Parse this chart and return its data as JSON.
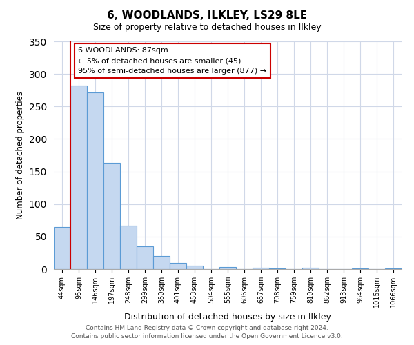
{
  "title": "6, WOODLANDS, ILKLEY, LS29 8LE",
  "subtitle": "Size of property relative to detached houses in Ilkley",
  "xlabel": "Distribution of detached houses by size in Ilkley",
  "ylabel": "Number of detached properties",
  "bar_color": "#c5d8f0",
  "bar_edge_color": "#5b9bd5",
  "categories": [
    "44sqm",
    "95sqm",
    "146sqm",
    "197sqm",
    "248sqm",
    "299sqm",
    "350sqm",
    "401sqm",
    "453sqm",
    "504sqm",
    "555sqm",
    "606sqm",
    "657sqm",
    "708sqm",
    "759sqm",
    "810sqm",
    "862sqm",
    "913sqm",
    "964sqm",
    "1015sqm",
    "1066sqm"
  ],
  "values": [
    65,
    282,
    272,
    163,
    67,
    35,
    20,
    10,
    5,
    0,
    3,
    0,
    2,
    1,
    0,
    2,
    0,
    0,
    1,
    0,
    1
  ],
  "ylim": [
    0,
    350
  ],
  "yticks": [
    0,
    50,
    100,
    150,
    200,
    250,
    300,
    350
  ],
  "marker_color": "#cc0000",
  "annotation_title": "6 WOODLANDS: 87sqm",
  "annotation_line1": "← 5% of detached houses are smaller (45)",
  "annotation_line2": "95% of semi-detached houses are larger (877) →",
  "annotation_box_color": "#ffffff",
  "annotation_border_color": "#cc0000",
  "footer1": "Contains HM Land Registry data © Crown copyright and database right 2024.",
  "footer2": "Contains public sector information licensed under the Open Government Licence v3.0.",
  "background_color": "#ffffff",
  "grid_color": "#d0d8e8"
}
